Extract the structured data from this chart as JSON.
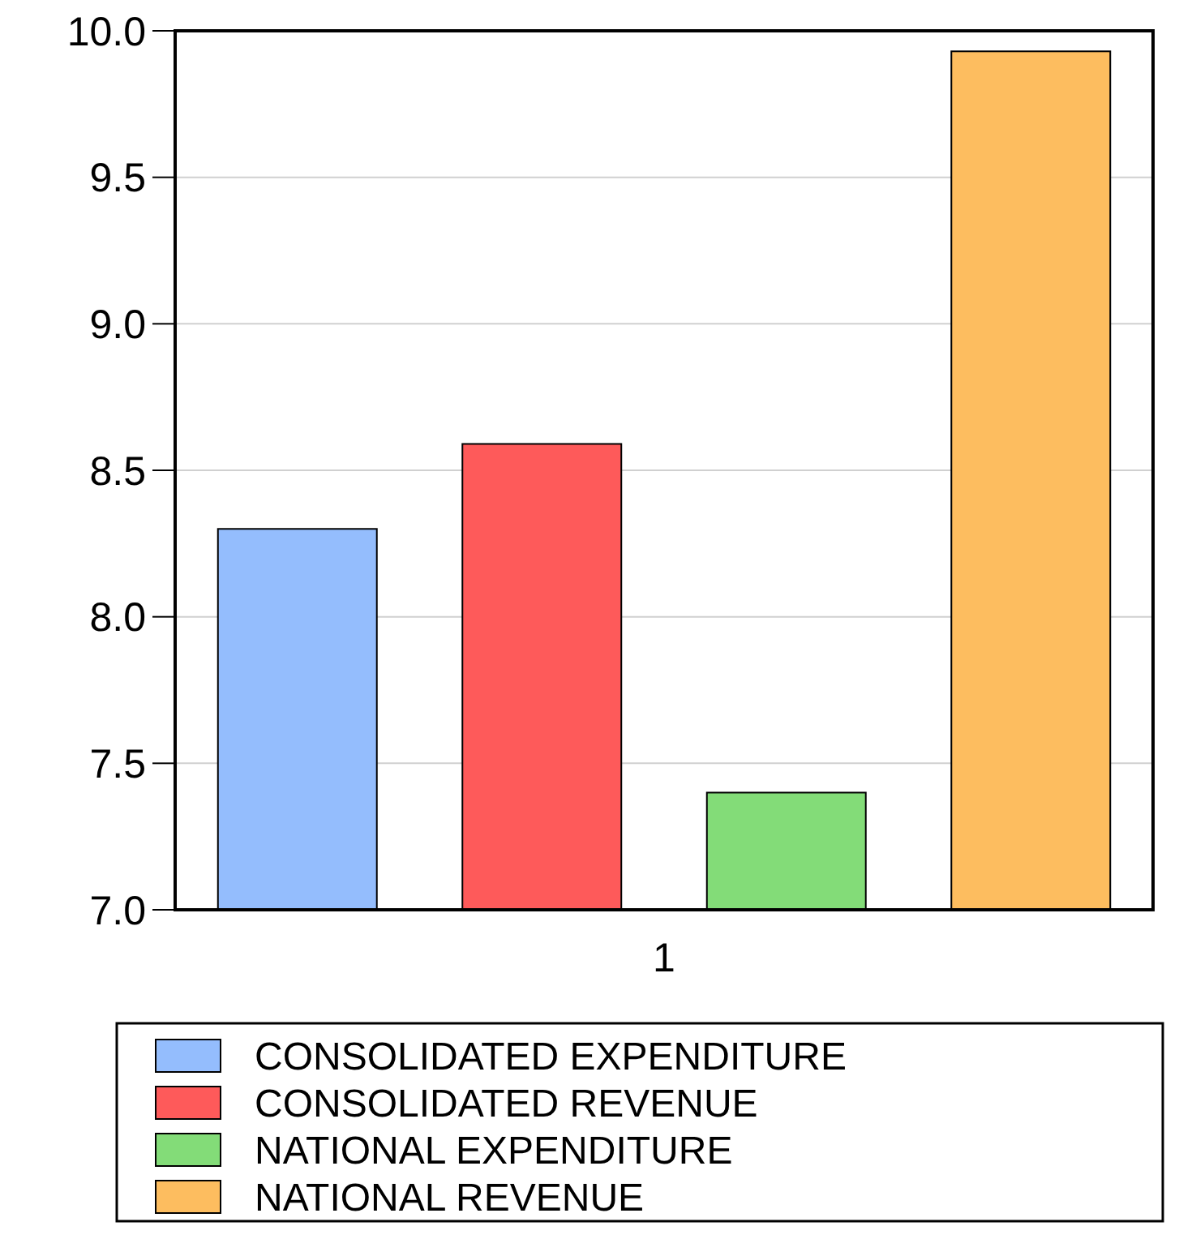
{
  "chart_data": {
    "type": "bar",
    "categories": [
      "1"
    ],
    "series": [
      {
        "name": "CONSOLIDATED EXPENDITURE",
        "color": "#94bdfd",
        "values": [
          8.3
        ]
      },
      {
        "name": "CONSOLIDATED REVENUE",
        "color": "#fe5a5a",
        "values": [
          8.59
        ]
      },
      {
        "name": "NATIONAL EXPENDITURE",
        "color": "#83dc78",
        "values": [
          7.4
        ]
      },
      {
        "name": "NATIONAL REVENUE",
        "color": "#fdbd5f",
        "values": [
          9.93
        ]
      }
    ],
    "ylim": [
      7.0,
      10.0
    ],
    "yticks": [
      {
        "value": 7,
        "label": "7.0"
      },
      {
        "value": 7.5,
        "label": "7.5"
      },
      {
        "value": 8,
        "label": "8.0"
      },
      {
        "value": 8.5,
        "label": "8.5"
      },
      {
        "value": 9,
        "label": "9.0"
      },
      {
        "value": 9.5,
        "label": "9.5"
      },
      {
        "value": 10,
        "label": "10.0"
      }
    ],
    "grid": "y",
    "legend": "bottom"
  }
}
